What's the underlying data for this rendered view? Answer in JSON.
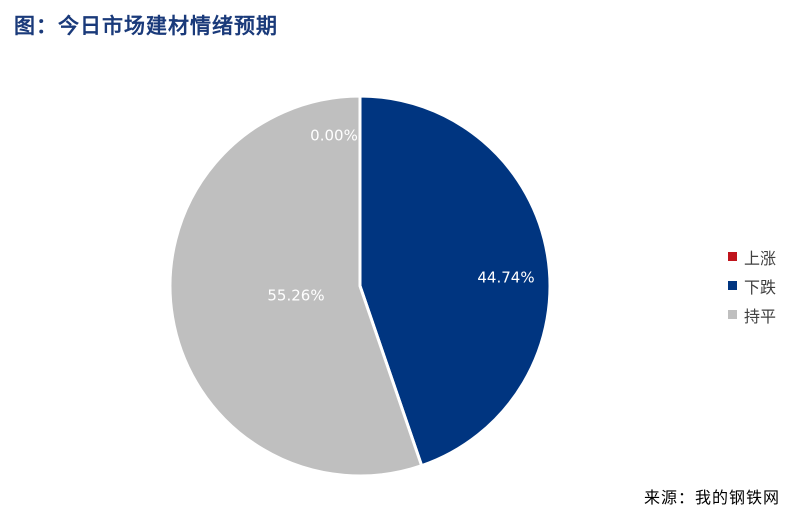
{
  "title": "图：今日市场建材情绪预期",
  "source": "来源：我的钢铁网",
  "chart_data": {
    "type": "pie",
    "categories": [
      "上涨",
      "下跌",
      "持平"
    ],
    "values": [
      0.0,
      44.74,
      55.26
    ],
    "labels": [
      "0.00%",
      "44.74%",
      "55.26%"
    ],
    "colors": [
      "#c0141c",
      "#003580",
      "#bfbfbf"
    ],
    "legend": "right"
  }
}
